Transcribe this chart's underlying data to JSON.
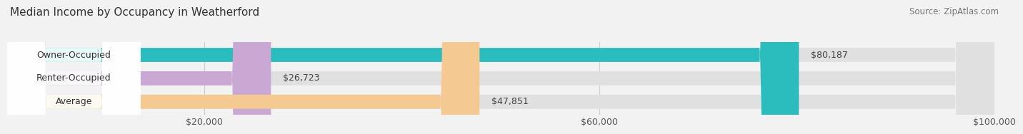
{
  "title": "Median Income by Occupancy in Weatherford",
  "source": "Source: ZipAtlas.com",
  "categories": [
    "Owner-Occupied",
    "Renter-Occupied",
    "Average"
  ],
  "values": [
    80187,
    26723,
    47851
  ],
  "bar_colors": [
    "#2bbcbe",
    "#c9a8d4",
    "#f5c992"
  ],
  "bar_labels": [
    "$80,187",
    "$26,723",
    "$47,851"
  ],
  "xlim": [
    0,
    100000
  ],
  "xticks": [
    20000,
    60000,
    100000
  ],
  "xticklabels": [
    "$20,000",
    "$60,000",
    "$100,000"
  ],
  "background_color": "#f2f2f2",
  "bar_bg_color": "#e0e0e0",
  "title_fontsize": 11,
  "source_fontsize": 8.5,
  "label_fontsize": 9,
  "tick_fontsize": 9,
  "category_fontsize": 9
}
